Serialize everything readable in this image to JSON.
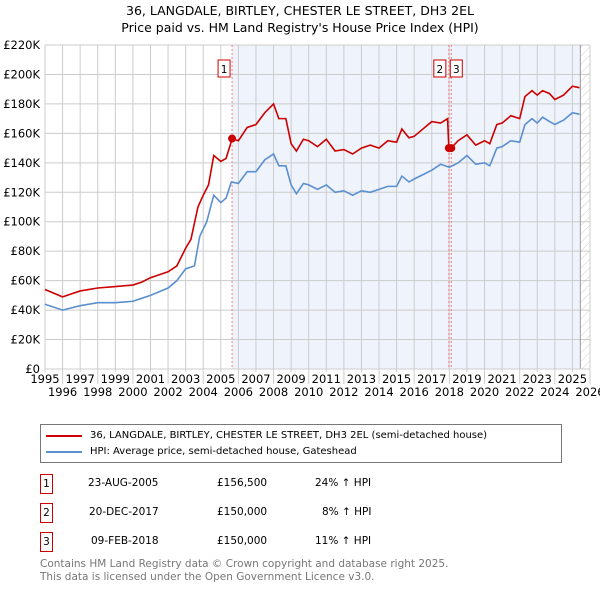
{
  "chart_data": {
    "type": "line",
    "title": "36, LANGDALE, BIRTLEY, CHESTER LE STREET, DH3 2EL",
    "subtitle": "Price paid vs. HM Land Registry's House Price Index (HPI)",
    "xlim": [
      1995,
      2026
    ],
    "ylim": [
      0,
      220000
    ],
    "x_ticks": [
      "1995",
      "1996",
      "1997",
      "1998",
      "1999",
      "2000",
      "2001",
      "2002",
      "2003",
      "2004",
      "2005",
      "2006",
      "2007",
      "2008",
      "2009",
      "2010",
      "2011",
      "2012",
      "2013",
      "2014",
      "2015",
      "2016",
      "2017",
      "2018",
      "2019",
      "2020",
      "2021",
      "2022",
      "2023",
      "2024",
      "2025",
      "2026"
    ],
    "y_ticks": [
      "£0",
      "£20K",
      "£40K",
      "£60K",
      "£80K",
      "£100K",
      "£120K",
      "£140K",
      "£160K",
      "£180K",
      "£200K",
      "£220K"
    ],
    "grid": true,
    "colors": {
      "property": "#cc0000",
      "hpi": "#5b8fd0",
      "shade": "#eef3fc"
    },
    "series": [
      {
        "name": "36, LANGDALE, BIRTLEY, CHESTER LE STREET, DH3 2EL (semi-detached house)",
        "points": [
          [
            1995,
            54
          ],
          [
            1996,
            49
          ],
          [
            1996.5,
            51
          ],
          [
            1997,
            53
          ],
          [
            1998,
            55
          ],
          [
            1999,
            56
          ],
          [
            2000,
            57
          ],
          [
            2000.5,
            59
          ],
          [
            2001,
            62
          ],
          [
            2002,
            66
          ],
          [
            2002.5,
            70
          ],
          [
            2003,
            82
          ],
          [
            2003.3,
            88
          ],
          [
            2003.7,
            110
          ],
          [
            2004,
            118
          ],
          [
            2004.3,
            125
          ],
          [
            2004.6,
            145
          ],
          [
            2005,
            141
          ],
          [
            2005.3,
            143
          ],
          [
            2005.65,
            156.5
          ],
          [
            2006,
            155
          ],
          [
            2006.5,
            164
          ],
          [
            2007,
            166
          ],
          [
            2007.5,
            174
          ],
          [
            2008,
            180
          ],
          [
            2008.3,
            170
          ],
          [
            2008.7,
            170
          ],
          [
            2009,
            153
          ],
          [
            2009.3,
            148
          ],
          [
            2009.7,
            156
          ],
          [
            2010,
            155
          ],
          [
            2010.5,
            151
          ],
          [
            2011,
            156
          ],
          [
            2011.5,
            148
          ],
          [
            2012,
            149
          ],
          [
            2012.5,
            146
          ],
          [
            2013,
            150
          ],
          [
            2013.5,
            152
          ],
          [
            2014,
            150
          ],
          [
            2014.5,
            155
          ],
          [
            2015,
            154
          ],
          [
            2015.3,
            163
          ],
          [
            2015.7,
            157
          ],
          [
            2016,
            158
          ],
          [
            2016.5,
            163
          ],
          [
            2017,
            168
          ],
          [
            2017.5,
            167
          ],
          [
            2017.9,
            170
          ],
          [
            2017.97,
            150
          ],
          [
            2018.1,
            150
          ],
          [
            2018.5,
            155
          ],
          [
            2019,
            159
          ],
          [
            2019.5,
            152
          ],
          [
            2020,
            155
          ],
          [
            2020.3,
            153
          ],
          [
            2020.7,
            166
          ],
          [
            2021,
            167
          ],
          [
            2021.5,
            172
          ],
          [
            2022,
            170
          ],
          [
            2022.3,
            185
          ],
          [
            2022.7,
            189
          ],
          [
            2023,
            186
          ],
          [
            2023.3,
            189
          ],
          [
            2023.7,
            187
          ],
          [
            2024,
            183
          ],
          [
            2024.5,
            186
          ],
          [
            2025,
            192
          ],
          [
            2025.4,
            191
          ]
        ]
      },
      {
        "name": "HPI: Average price, semi-detached house, Gateshead",
        "points": [
          [
            1995,
            44
          ],
          [
            1996,
            40
          ],
          [
            1997,
            43
          ],
          [
            1998,
            45
          ],
          [
            1999,
            45
          ],
          [
            2000,
            46
          ],
          [
            2000.5,
            48
          ],
          [
            2001,
            50
          ],
          [
            2002,
            55
          ],
          [
            2002.5,
            60
          ],
          [
            2003,
            68
          ],
          [
            2003.5,
            70
          ],
          [
            2003.8,
            90
          ],
          [
            2004.2,
            100
          ],
          [
            2004.6,
            118
          ],
          [
            2005,
            113
          ],
          [
            2005.3,
            116
          ],
          [
            2005.6,
            127
          ],
          [
            2006,
            126
          ],
          [
            2006.5,
            134
          ],
          [
            2007,
            134
          ],
          [
            2007.5,
            142
          ],
          [
            2008,
            146
          ],
          [
            2008.3,
            138
          ],
          [
            2008.7,
            138
          ],
          [
            2009,
            125
          ],
          [
            2009.3,
            119
          ],
          [
            2009.7,
            126
          ],
          [
            2010,
            125
          ],
          [
            2010.5,
            122
          ],
          [
            2011,
            125
          ],
          [
            2011.5,
            120
          ],
          [
            2012,
            121
          ],
          [
            2012.5,
            118
          ],
          [
            2013,
            121
          ],
          [
            2013.5,
            120
          ],
          [
            2014,
            122
          ],
          [
            2014.5,
            124
          ],
          [
            2015,
            124
          ],
          [
            2015.3,
            131
          ],
          [
            2015.7,
            127
          ],
          [
            2016,
            129
          ],
          [
            2016.5,
            132
          ],
          [
            2017,
            135
          ],
          [
            2017.5,
            139
          ],
          [
            2018,
            137
          ],
          [
            2018.5,
            140
          ],
          [
            2019,
            145
          ],
          [
            2019.5,
            139
          ],
          [
            2020,
            140
          ],
          [
            2020.3,
            138
          ],
          [
            2020.7,
            150
          ],
          [
            2021,
            151
          ],
          [
            2021.5,
            155
          ],
          [
            2022,
            154
          ],
          [
            2022.3,
            166
          ],
          [
            2022.7,
            170
          ],
          [
            2023,
            167
          ],
          [
            2023.3,
            171
          ],
          [
            2023.7,
            168
          ],
          [
            2024,
            166
          ],
          [
            2024.5,
            169
          ],
          [
            2025,
            174
          ],
          [
            2025.4,
            173
          ]
        ]
      }
    ],
    "sales": [
      {
        "id": "1",
        "x": 2005.64,
        "price": 156500,
        "date": "23-AUG-2005",
        "price_label": "£156,500",
        "hpi": "24% ↑ HPI"
      },
      {
        "id": "2",
        "x": 2017.97,
        "price": 150000,
        "date": "20-DEC-2017",
        "price_label": "£150,000",
        "hpi": "8% ↑ HPI"
      },
      {
        "id": "3",
        "x": 2018.11,
        "price": 150000,
        "date": "09-FEB-2018",
        "price_label": "£150,000",
        "hpi": "11% ↑ HPI"
      }
    ]
  },
  "legend": {
    "property": "36, LANGDALE, BIRTLEY, CHESTER LE STREET, DH3 2EL (semi-detached house)",
    "hpi": "HPI: Average price, semi-detached house, Gateshead"
  },
  "footer": {
    "line1": "Contains HM Land Registry data © Crown copyright and database right 2025.",
    "line2": "This data is licensed under the Open Government Licence v3.0."
  }
}
